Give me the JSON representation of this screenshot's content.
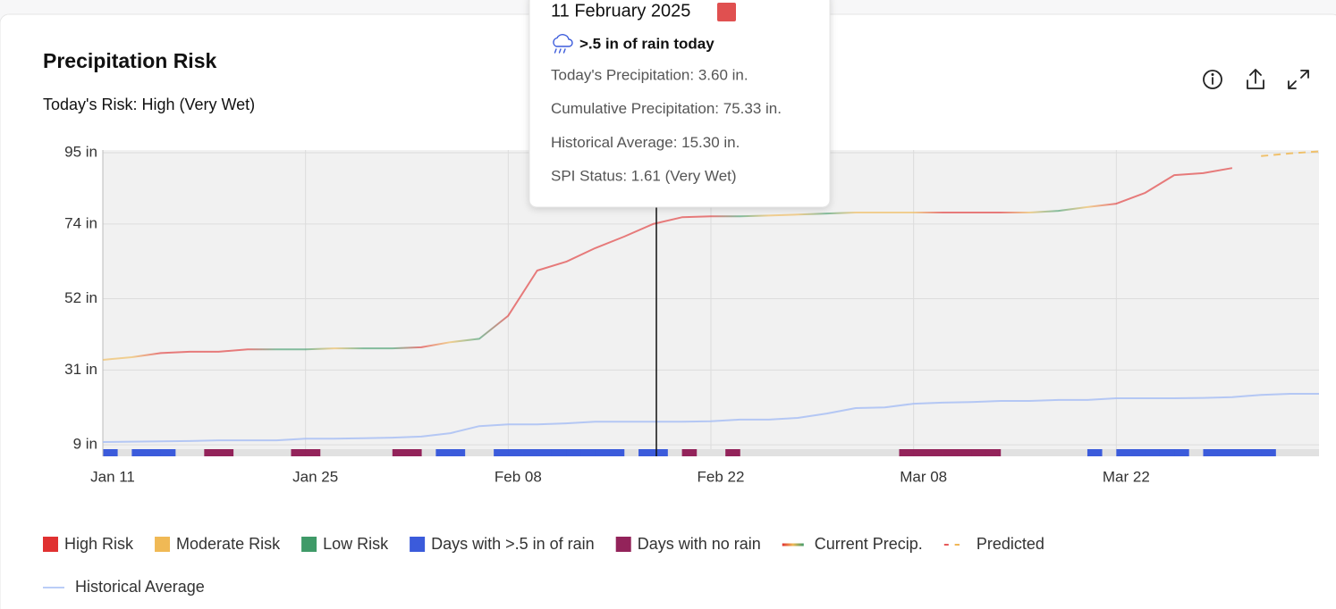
{
  "chart_data": {
    "type": "line",
    "title": "Precipitation Risk",
    "subtitle": "Today's Risk: High (Very Wet)",
    "x": [
      "Jan 11",
      "Jan 13",
      "Jan 15",
      "Jan 17",
      "Jan 19",
      "Jan 21",
      "Jan 23",
      "Jan 25",
      "Jan 27",
      "Jan 29",
      "Jan 31",
      "Feb 02",
      "Feb 04",
      "Feb 06",
      "Feb 08",
      "Feb 10",
      "Feb 12",
      "Feb 14",
      "Feb 16",
      "Feb 18",
      "Feb 20",
      "Feb 22",
      "Feb 24",
      "Feb 26",
      "Feb 28",
      "Mar 02",
      "Mar 04",
      "Mar 06",
      "Mar 08",
      "Mar 10",
      "Mar 12",
      "Mar 14",
      "Mar 16",
      "Mar 18",
      "Mar 20",
      "Mar 22",
      "Mar 24",
      "Mar 26",
      "Mar 28",
      "Mar 30",
      "Apr 01",
      "Apr 03",
      "Apr 05"
    ],
    "xticks": [
      "Jan 11",
      "Jan 25",
      "Feb 08",
      "Feb 22",
      "Mar 08",
      "Mar 22"
    ],
    "ylim": [
      5.6,
      95.8
    ],
    "yticks": [
      {
        "value": 9,
        "label": "9 in"
      },
      {
        "value": 31,
        "label": "31 in"
      },
      {
        "value": 52,
        "label": "52 in"
      },
      {
        "value": 74,
        "label": "74 in"
      },
      {
        "value": 95,
        "label": "95 in"
      }
    ],
    "grid": true,
    "series": [
      {
        "name": "Current Precip.",
        "color": "#e03131",
        "point_colors": [
          "#f0b955",
          "#f0b955",
          "#e03131",
          "#e03131",
          "#e03131",
          "#e03131",
          "#3f9a68",
          "#3f9a68",
          "#f0b955",
          "#3f9a68",
          "#3f9a68",
          "#e03131",
          "#f0b955",
          "#3f9a68",
          "#e03131",
          "#e03131",
          "#e03131",
          "#e03131",
          "#e03131",
          "#e03131",
          "#e03131",
          "#e03131",
          "#3f9a68",
          "#f0b955",
          "#f0b955",
          "#3f9a68",
          "#f0b955",
          "#f0b955",
          "#f0b955",
          "#e03131",
          "#e03131",
          "#e03131",
          "#f0b955",
          "#3f9a68",
          "#f0b955",
          "#e03131",
          "#e03131",
          "#e03131",
          "#e03131",
          "#e03131",
          null,
          null,
          null
        ],
        "values": [
          34,
          34.8,
          36,
          36.4,
          36.4,
          37.1,
          37.1,
          37.1,
          37.4,
          37.4,
          37.4,
          37.7,
          39.2,
          40.2,
          47,
          60.3,
          62.9,
          66.9,
          70.3,
          74,
          76,
          76.3,
          76.3,
          76.5,
          76.8,
          77.1,
          77.4,
          77.4,
          77.4,
          77.4,
          77.4,
          77.4,
          77.4,
          77.9,
          79,
          80,
          83.2,
          88.4,
          89,
          90.5,
          null,
          null,
          null
        ]
      },
      {
        "name": "Predicted",
        "color": "#f0b955",
        "dashed": true,
        "values": [
          null,
          null,
          null,
          null,
          null,
          null,
          null,
          null,
          null,
          null,
          null,
          null,
          null,
          null,
          null,
          null,
          null,
          null,
          null,
          null,
          null,
          null,
          null,
          null,
          null,
          null,
          null,
          null,
          null,
          null,
          null,
          null,
          null,
          null,
          null,
          null,
          null,
          null,
          null,
          null,
          94,
          94.8,
          95.4
        ]
      },
      {
        "name": "Historical Average",
        "color": "#a9c0f5",
        "values": [
          9.8,
          9.9,
          10,
          10.1,
          10.3,
          10.3,
          10.3,
          10.8,
          10.8,
          10.9,
          11.1,
          11.4,
          12.4,
          14.5,
          15,
          15,
          15.3,
          15.8,
          15.8,
          15.8,
          15.8,
          15.9,
          16.4,
          16.4,
          16.9,
          18.2,
          19.8,
          20,
          21.1,
          21.4,
          21.6,
          21.9,
          21.9,
          22.2,
          22.2,
          22.7,
          22.7,
          22.7,
          22.8,
          23,
          23.7,
          24,
          24
        ]
      }
    ],
    "risk_levels": [
      {
        "name": "High Risk",
        "color": "#e03131"
      },
      {
        "name": "Moderate Risk",
        "color": "#f0b955"
      },
      {
        "name": "Low Risk",
        "color": "#3f9a68"
      }
    ],
    "day_markers": [
      {
        "name": "Days with >.5 in of rain",
        "color": "#3b5bdb",
        "dates": [
          "Jan 11",
          "Jan 13",
          "Jan 14",
          "Jan 15",
          "Feb 03",
          "Feb 04",
          "Feb 07",
          "Feb 08",
          "Feb 09",
          "Feb 10",
          "Feb 11",
          "Feb 12",
          "Feb 13",
          "Feb 14",
          "Feb 15",
          "Feb 17",
          "Feb 18",
          "Mar 20",
          "Mar 22",
          "Mar 23",
          "Mar 24",
          "Mar 25",
          "Mar 26",
          "Mar 28",
          "Mar 29",
          "Mar 30",
          "Mar 31",
          "Apr 01"
        ]
      },
      {
        "name": "Days with no rain",
        "color": "#93235a",
        "dates": [
          "Jan 18",
          "Jan 19",
          "Jan 24",
          "Jan 25",
          "Jan 31",
          "Feb 01",
          "Feb 20",
          "Feb 23",
          "Mar 07",
          "Mar 08",
          "Mar 09",
          "Mar 10",
          "Mar 11",
          "Mar 12",
          "Mar 13"
        ]
      }
    ],
    "tooltip": {
      "date": "11 February 2025",
      "headline": ">.5 in of rain today",
      "lines": [
        "Today's Precipitation: 3.60 in.",
        "Cumulative Precipitation: 75.33 in.",
        "Historical Average: 15.30 in.",
        "SPI Status: 1.61 (Very Wet)"
      ]
    }
  }
}
